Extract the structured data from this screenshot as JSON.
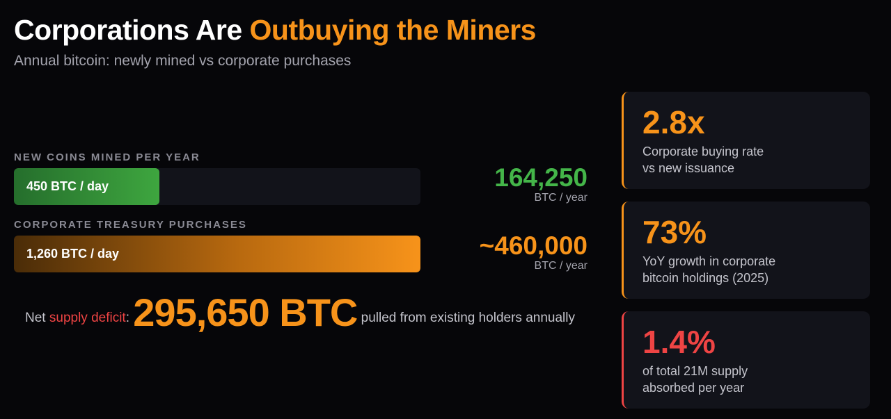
{
  "header": {
    "title_part1": "Corporations Are ",
    "title_part2": "Outbuying the Miners",
    "subtitle": "Annual bitcoin: newly mined vs corporate purchases"
  },
  "colors": {
    "accent": "#f7931a",
    "green": "#44b549",
    "red": "#ef4444",
    "background": "#060609",
    "panel": "#12131a"
  },
  "chart_data": {
    "type": "bar",
    "orientation": "horizontal",
    "categories": [
      "NEW COINS MINED PER YEAR",
      "CORPORATE TREASURY PURCHASES"
    ],
    "values": [
      450,
      1260
    ],
    "value_labels": [
      "450 BTC / day",
      "1,260 BTC / day"
    ],
    "yearly_values": [
      "164,250",
      "~460,000"
    ],
    "yearly_unit": "BTC / year",
    "xlim": [
      0,
      1260
    ]
  },
  "deficit": {
    "prefix": "Net ",
    "highlight": "supply deficit",
    "colon": ":",
    "value": "295,650 BTC",
    "suffix": " pulled from existing holders annually"
  },
  "stats": [
    {
      "value": "2.8x",
      "desc_line1": "Corporate buying rate",
      "desc_line2": "vs new issuance"
    },
    {
      "value": "73%",
      "desc_line1": "YoY growth in corporate",
      "desc_line2": "bitcoin holdings (2025)"
    },
    {
      "value": "1.4%",
      "desc_line1": "of total 21M supply",
      "desc_line2": "absorbed per year"
    }
  ]
}
